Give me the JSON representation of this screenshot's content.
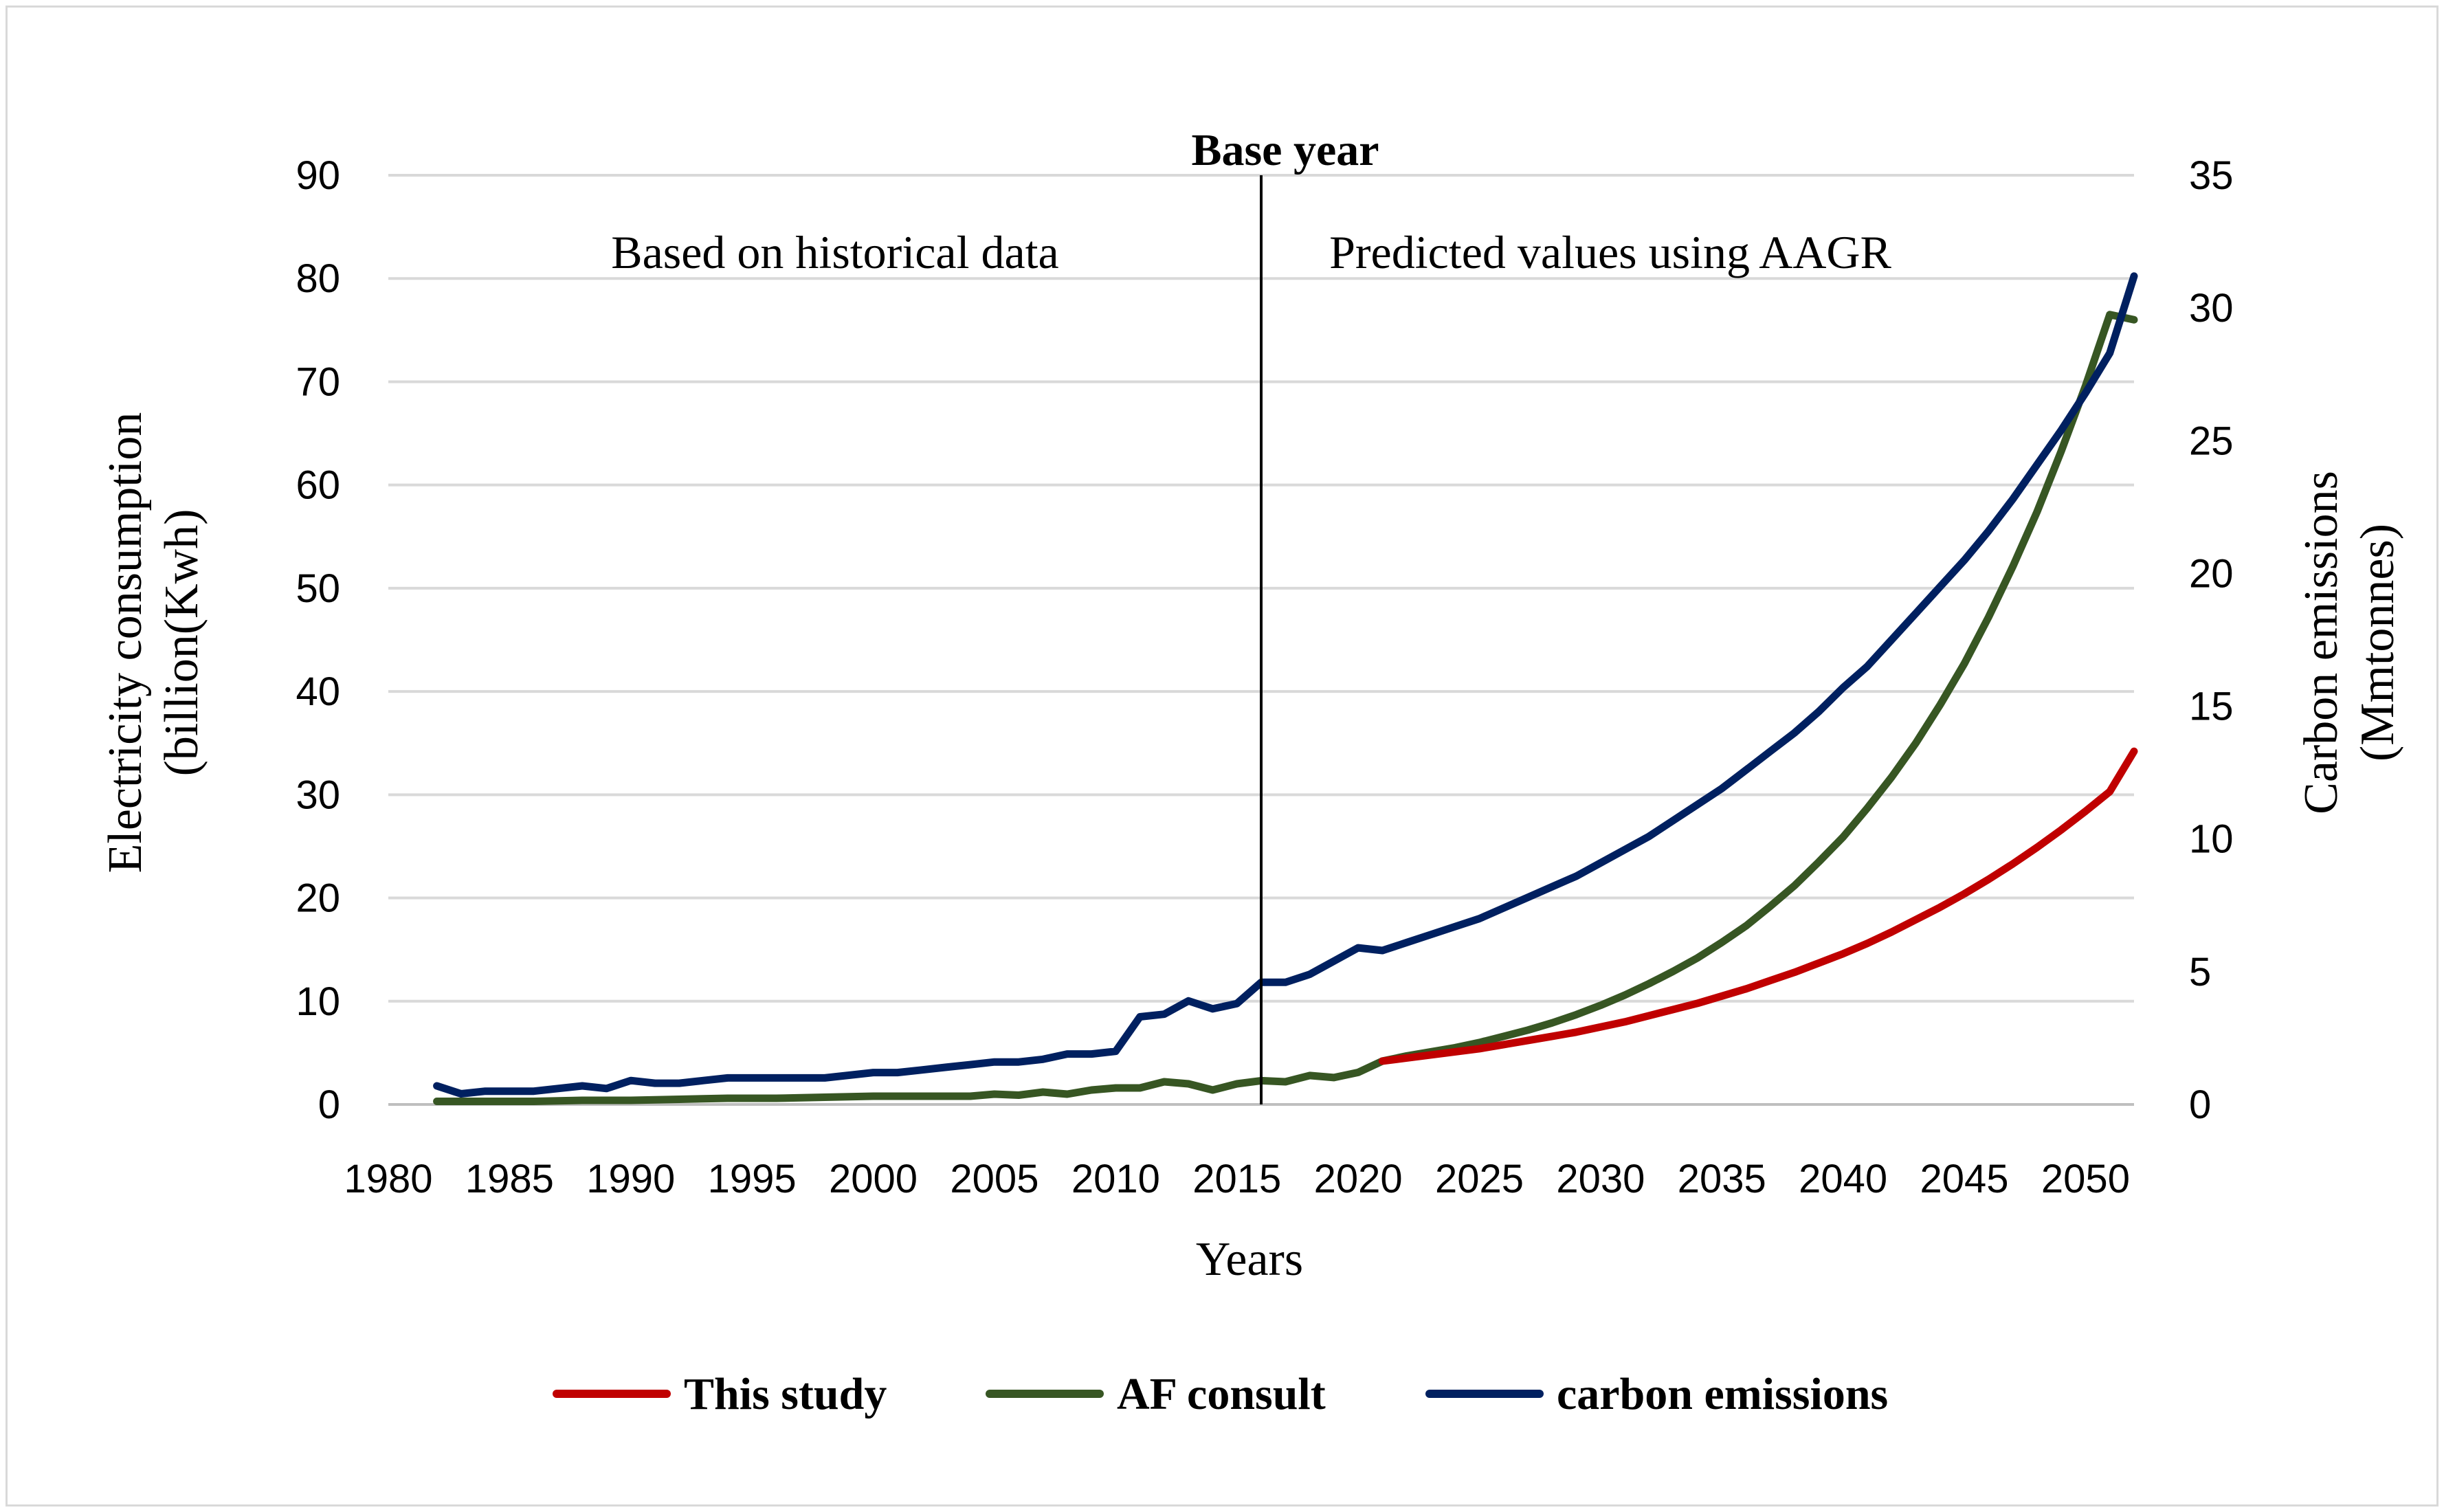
{
  "chart_data": {
    "type": "line",
    "title": "",
    "xlabel": "Years",
    "ylabel": "Electricity  consumption (billion(Kwh)",
    "y2label": "Carbon emissions (Mmtonnes)",
    "x_ticks": [
      "1980",
      "1985",
      "1990",
      "1995",
      "2000",
      "2005",
      "2010",
      "2015",
      "2020",
      "2025",
      "2030",
      "2035",
      "2040",
      "2045",
      "2050"
    ],
    "xlim": [
      1980,
      2052
    ],
    "ylim": [
      0,
      90
    ],
    "y_ticks": [
      0,
      10,
      20,
      30,
      40,
      50,
      60,
      70,
      80,
      90
    ],
    "y2lim": [
      0,
      35
    ],
    "y2_ticks": [
      0,
      5,
      10,
      15,
      20,
      25,
      30,
      35
    ],
    "grid": true,
    "legend_position": "bottom",
    "annotations": {
      "base_year_label": "Base year",
      "base_year_value": 2016,
      "left_region_label": "Based on historical data",
      "right_region_label": "Predicted values using AAGR"
    },
    "series": [
      {
        "name": "This study",
        "color": "#c00000",
        "axis": "left",
        "x": [
          2021,
          2022,
          2023,
          2024,
          2025,
          2026,
          2027,
          2028,
          2029,
          2030,
          2031,
          2032,
          2033,
          2034,
          2035,
          2036,
          2037,
          2038,
          2039,
          2040,
          2041,
          2042,
          2043,
          2044,
          2045,
          2046,
          2047,
          2048,
          2049,
          2050,
          2051,
          2052
        ],
        "values": [
          4.2,
          4.5,
          4.8,
          5.1,
          5.4,
          5.8,
          6.2,
          6.6,
          7.0,
          7.5,
          8.0,
          8.6,
          9.2,
          9.8,
          10.5,
          11.2,
          12.0,
          12.8,
          13.7,
          14.6,
          15.6,
          16.7,
          17.9,
          19.1,
          20.4,
          21.8,
          23.3,
          24.9,
          26.6,
          28.4,
          30.3,
          34.2
        ]
      },
      {
        "name": "AF consult",
        "color": "#375623",
        "axis": "left",
        "x": [
          1982,
          1984,
          1986,
          1988,
          1990,
          1992,
          1994,
          1996,
          1998,
          2000,
          2002,
          2004,
          2005,
          2006,
          2007,
          2008,
          2009,
          2010,
          2011,
          2012,
          2013,
          2014,
          2015,
          2016,
          2017,
          2018,
          2019,
          2020,
          2021,
          2022,
          2023,
          2024,
          2025,
          2026,
          2027,
          2028,
          2029,
          2030,
          2031,
          2032,
          2033,
          2034,
          2035,
          2036,
          2037,
          2038,
          2039,
          2040,
          2041,
          2042,
          2043,
          2044,
          2045,
          2046,
          2047,
          2048,
          2049,
          2050,
          2051,
          2052
        ],
        "values": [
          0.3,
          0.3,
          0.3,
          0.4,
          0.4,
          0.5,
          0.6,
          0.6,
          0.7,
          0.8,
          0.8,
          0.8,
          1.0,
          0.9,
          1.2,
          1.0,
          1.4,
          1.6,
          1.6,
          2.2,
          2.0,
          1.4,
          2.0,
          2.3,
          2.2,
          2.8,
          2.6,
          3.1,
          4.2,
          4.7,
          5.1,
          5.5,
          6.0,
          6.6,
          7.2,
          7.9,
          8.7,
          9.6,
          10.6,
          11.7,
          12.9,
          14.2,
          15.7,
          17.3,
          19.2,
          21.2,
          23.5,
          25.9,
          28.7,
          31.7,
          35.0,
          38.7,
          42.7,
          47.2,
          52.1,
          57.4,
          63.3,
          69.6,
          76.5,
          76.0
        ]
      },
      {
        "name": "carbon emissions",
        "color": "#002060",
        "axis": "right",
        "x": [
          1982,
          1983,
          1984,
          1985,
          1986,
          1987,
          1988,
          1989,
          1990,
          1991,
          1992,
          1993,
          1994,
          1995,
          1996,
          1997,
          1998,
          1999,
          2000,
          2001,
          2002,
          2003,
          2004,
          2005,
          2006,
          2007,
          2008,
          2009,
          2010,
          2011,
          2012,
          2013,
          2014,
          2015,
          2016,
          2017,
          2018,
          2019,
          2020,
          2021,
          2022,
          2023,
          2024,
          2025,
          2026,
          2027,
          2028,
          2029,
          2030,
          2031,
          2032,
          2033,
          2034,
          2035,
          2036,
          2037,
          2038,
          2039,
          2040,
          2041,
          2042,
          2043,
          2044,
          2045,
          2046,
          2047,
          2048,
          2049,
          2050,
          2051,
          2052
        ],
        "values": [
          0.7,
          0.4,
          0.5,
          0.5,
          0.5,
          0.6,
          0.7,
          0.6,
          0.9,
          0.8,
          0.8,
          0.9,
          1.0,
          1.0,
          1.0,
          1.0,
          1.0,
          1.1,
          1.2,
          1.2,
          1.3,
          1.4,
          1.5,
          1.6,
          1.6,
          1.7,
          1.9,
          1.9,
          2.0,
          3.3,
          3.4,
          3.9,
          3.6,
          3.8,
          4.6,
          4.6,
          4.9,
          5.4,
          5.9,
          5.8,
          6.1,
          6.4,
          6.7,
          7.0,
          7.4,
          7.8,
          8.2,
          8.6,
          9.1,
          9.6,
          10.1,
          10.7,
          11.3,
          11.9,
          12.6,
          13.3,
          14.0,
          14.8,
          15.7,
          16.5,
          17.5,
          18.5,
          19.5,
          20.5,
          21.6,
          22.8,
          24.1,
          25.4,
          26.8,
          28.3,
          31.2
        ]
      }
    ]
  }
}
